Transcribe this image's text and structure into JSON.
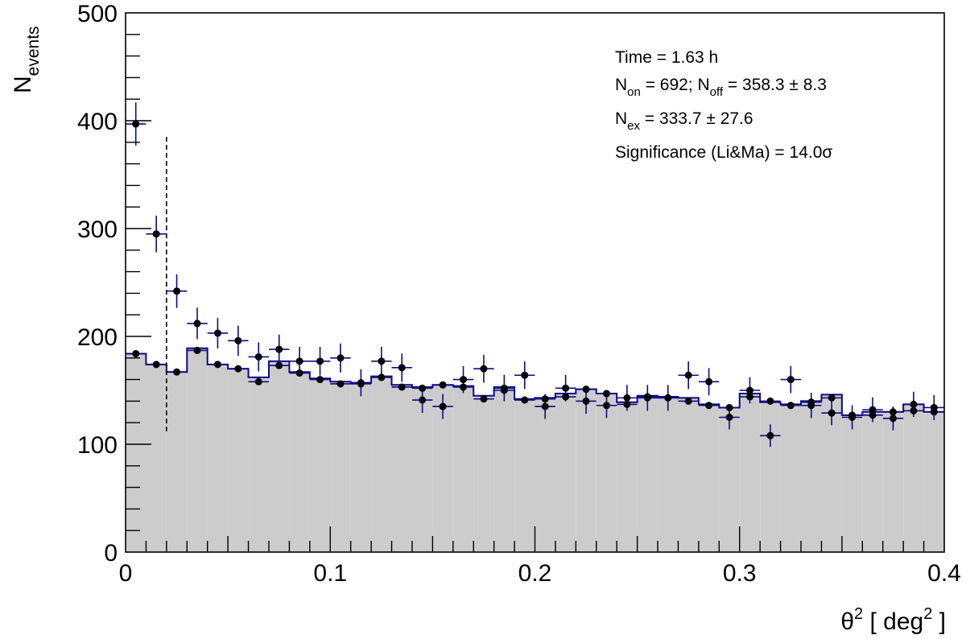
{
  "chart_data": {
    "type": "scatter",
    "xlabel": {
      "base": "θ",
      "sup": "2",
      "open": " [ deg",
      "unit_sup": "2",
      "close": " ]"
    },
    "ylabel": {
      "base": "N",
      "sub": "events"
    },
    "xlim": [
      0,
      0.4
    ],
    "ylim": [
      0,
      500
    ],
    "x_ticks": [
      0,
      0.1,
      0.2,
      0.3,
      0.4
    ],
    "x_tick_labels": [
      "0",
      "0.1",
      "0.2",
      "0.3",
      "0.4"
    ],
    "y_ticks": [
      0,
      100,
      200,
      300,
      400,
      500
    ],
    "y_tick_labels": [
      "0",
      "100",
      "200",
      "300",
      "400",
      "500"
    ],
    "bin_width": 0.01,
    "cut_line": {
      "x": 0.02,
      "y_top": 385,
      "y_bottom": 112,
      "style": "dashed"
    },
    "annotation": {
      "time": "Time = 1.63 h",
      "non_prefix": "N",
      "non_sub": "on",
      "non_value": " = 692; N",
      "noff_sub": "off",
      "noff_value": " = 358.3 ±  8.3",
      "nex_prefix": "N",
      "nex_sub": "ex",
      "nex_value": " = 333.7 ± 27.6",
      "significance": "Significance (Li&Ma) = 14.0σ"
    },
    "series": [
      {
        "values": [
          397,
          295,
          242,
          212,
          203,
          196,
          181,
          188,
          177,
          177,
          180,
          157,
          177,
          171,
          141,
          135,
          160,
          170,
          152,
          164,
          135,
          152,
          140,
          136,
          143,
          143,
          143,
          164,
          158,
          125,
          150,
          108,
          160,
          136,
          129,
          125,
          132,
          124,
          137,
          134
        ],
        "errors": [
          20,
          17,
          15.6,
          14.6,
          14.2,
          14,
          13.5,
          13.7,
          13.3,
          13.3,
          13.4,
          12.5,
          13.3,
          13.1,
          11.9,
          11.6,
          12.6,
          13,
          12.3,
          12.8,
          11.6,
          12.3,
          11.8,
          11.7,
          12,
          12,
          12,
          12.8,
          12.6,
          11.2,
          12.2,
          10.4,
          12.6,
          11.7,
          11.4,
          11.2,
          11.5,
          11.1,
          11.7,
          11.6
        ],
        "color": "#0a0a8c"
      },
      {
        "values": [
          184,
          174,
          167,
          187,
          174,
          170,
          158,
          173,
          166,
          160,
          156,
          156,
          162,
          153,
          152,
          155,
          153,
          142,
          150,
          141,
          142,
          144,
          151,
          147,
          137,
          144,
          143,
          140,
          136,
          134,
          144,
          140,
          136,
          139,
          143,
          127,
          127,
          130,
          131,
          130
        ],
        "errors": [
          3,
          3,
          3,
          3,
          3,
          3,
          3,
          3,
          3,
          3,
          3,
          3,
          3,
          3,
          3,
          3,
          3,
          3,
          3,
          3,
          3,
          3,
          3,
          3,
          3,
          3,
          3,
          3,
          3,
          3,
          3,
          3,
          3,
          3,
          3,
          3,
          3,
          3,
          3,
          3
        ],
        "histogram": [
          184,
          174,
          167,
          189,
          174,
          170,
          162,
          177,
          167,
          161,
          158,
          157,
          163,
          155,
          153,
          155,
          154,
          145,
          153,
          142,
          143,
          147,
          151,
          147,
          139,
          145,
          144,
          143,
          137,
          134,
          147,
          139,
          137,
          140,
          146,
          127,
          130,
          130,
          137,
          130
        ],
        "fill": "#cccccc",
        "color": "#0a0a8c"
      }
    ]
  }
}
